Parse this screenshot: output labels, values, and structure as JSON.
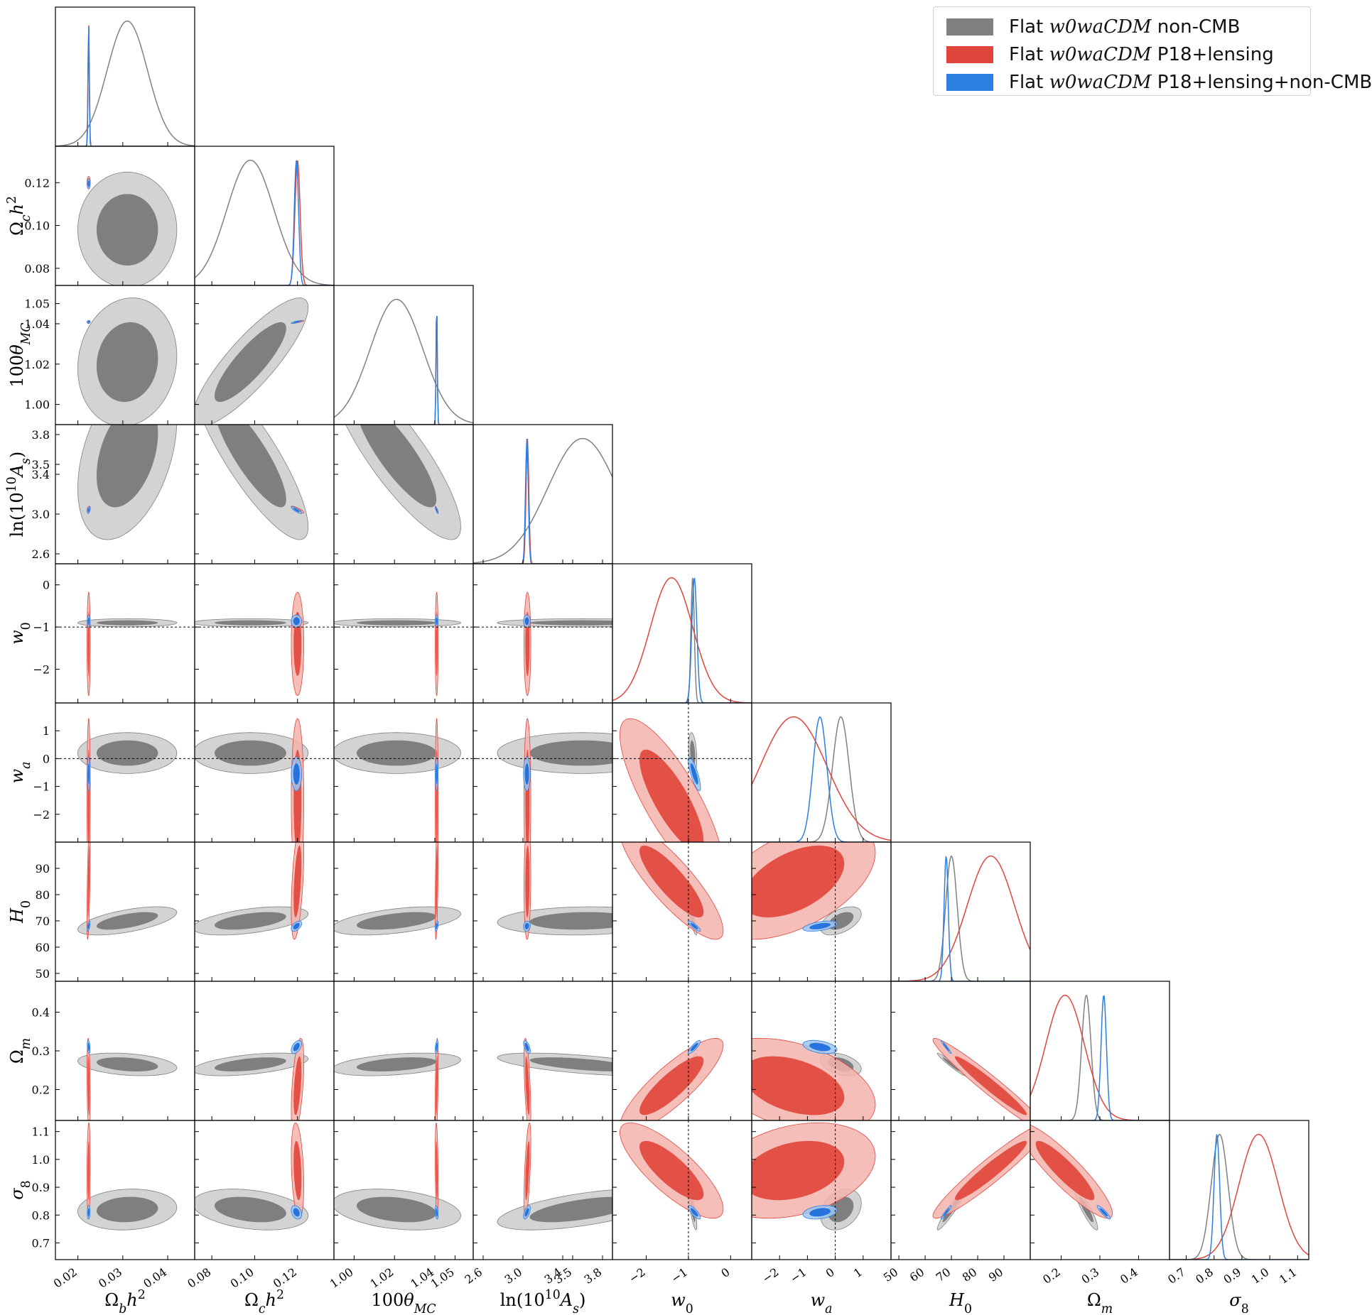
{
  "chart_data": {
    "type": "corner",
    "parameters": [
      {
        "id": "ombh2",
        "label": "Ωbh²",
        "range": [
          0.015,
          0.046
        ],
        "ticks": [
          0.02,
          0.03,
          0.04
        ],
        "tick_labels": [
          "0.02",
          "0.03",
          "0.04"
        ]
      },
      {
        "id": "omch2",
        "label": "Ωch²",
        "range": [
          0.072,
          0.137
        ],
        "ticks": [
          0.08,
          0.1,
          0.12
        ],
        "tick_labels": [
          "0.08",
          "0.10",
          "0.12"
        ]
      },
      {
        "id": "theta",
        "label": "100θMC",
        "range": [
          0.99,
          1.059
        ],
        "ticks": [
          1.0,
          1.02,
          1.04,
          1.05
        ],
        "tick_labels": [
          "1.00",
          "1.02",
          "1.04",
          "1.05"
        ]
      },
      {
        "id": "logA",
        "label": "ln(10¹⁰As)",
        "range": [
          2.5,
          3.9
        ],
        "ticks": [
          2.6,
          3.0,
          3.4,
          3.5,
          3.8
        ],
        "tick_labels": [
          "2.6",
          "3.0",
          "3.4",
          "3.5",
          "3.8"
        ]
      },
      {
        "id": "w0",
        "label": "w0",
        "range": [
          -2.8,
          0.5
        ],
        "ticks": [
          -2,
          -1,
          0
        ],
        "tick_labels": [
          "−2",
          "−1",
          "0"
        ]
      },
      {
        "id": "wa",
        "label": "wa",
        "range": [
          -3,
          2
        ],
        "ticks": [
          -2,
          -1,
          0,
          1
        ],
        "tick_labels": [
          "−2",
          "−1",
          "0",
          "1"
        ]
      },
      {
        "id": "H0",
        "label": "H0",
        "range": [
          47,
          100
        ],
        "ticks": [
          50,
          60,
          70,
          80,
          90
        ],
        "tick_labels": [
          "50",
          "60",
          "70",
          "80",
          "90"
        ]
      },
      {
        "id": "Om",
        "label": "Ωm",
        "range": [
          0.12,
          0.48
        ],
        "ticks": [
          0.2,
          0.3,
          0.4
        ],
        "tick_labels": [
          "0.2",
          "0.3",
          "0.4"
        ]
      },
      {
        "id": "s8",
        "label": "σ8",
        "range": [
          0.64,
          1.14
        ],
        "ticks": [
          0.7,
          0.8,
          0.9,
          1.0,
          1.1
        ],
        "tick_labels": [
          "0.7",
          "0.8",
          "0.9",
          "1.0",
          "1.1"
        ]
      }
    ],
    "series": [
      {
        "name": "Flat w0waCDM non-CMB",
        "color": "#808080",
        "fill_inner": "#7a7a7a",
        "fill_outer": "#cbcbcb",
        "mean": {
          "ombh2": 0.031,
          "omch2": 0.098,
          "theta": 1.021,
          "logA": 3.6,
          "w0": -0.9,
          "wa": 0.2,
          "H0": 70,
          "Om": 0.265,
          "s8": 0.82
        },
        "sigma": {
          "ombh2": 0.0045,
          "omch2": 0.011,
          "theta": 0.013,
          "logA": 0.35,
          "w0": 0.04,
          "wa": 0.3,
          "H0": 2.2,
          "Om": 0.012,
          "s8": 0.03
        }
      },
      {
        "name": "Flat w0waCDM P18+lensing",
        "color": "#e0453c",
        "fill_inner": "#e24a3f",
        "fill_outer": "#f4b3ad",
        "mean": {
          "ombh2": 0.0224,
          "omch2": 0.12,
          "theta": 1.0409,
          "logA": 3.045,
          "w0": -1.4,
          "wa": -1.5,
          "H0": 85,
          "Om": 0.21,
          "s8": 0.96
        },
        "sigma": {
          "ombh2": 0.00015,
          "omch2": 0.0012,
          "theta": 0.0003,
          "logA": 0.014,
          "w0": 0.5,
          "wa": 1.2,
          "H0": 9,
          "Om": 0.05,
          "s8": 0.07
        }
      },
      {
        "name": "Flat w0waCDM P18+lensing+non-CMB",
        "color": "#2a7fe0",
        "fill_inner": "#1f6fdc",
        "fill_outer": "#9fc4f0",
        "mean": {
          "ombh2": 0.0224,
          "omch2": 0.1195,
          "theta": 1.0409,
          "logA": 3.04,
          "w0": -0.86,
          "wa": -0.55,
          "H0": 68,
          "Om": 0.31,
          "s8": 0.81
        },
        "sigma": {
          "ombh2": 0.00013,
          "omch2": 0.001,
          "theta": 0.0003,
          "logA": 0.014,
          "w0": 0.06,
          "wa": 0.25,
          "H0": 0.8,
          "Om": 0.007,
          "s8": 0.01
        }
      }
    ],
    "reference_lines": {
      "w0": -1,
      "wa": 0
    },
    "legend_position": "top-right"
  },
  "legend": {
    "items": [
      {
        "prefix": "Flat ",
        "math": "w0waCDM",
        "suffix": " non-CMB",
        "color": "#808080"
      },
      {
        "prefix": "Flat ",
        "math": "w0waCDM",
        "suffix": " P18+lensing",
        "color": "#e0453c"
      },
      {
        "prefix": "Flat ",
        "math": "w0waCDM",
        "suffix": " P18+lensing+non-CMB",
        "color": "#2a7fe0"
      }
    ]
  }
}
